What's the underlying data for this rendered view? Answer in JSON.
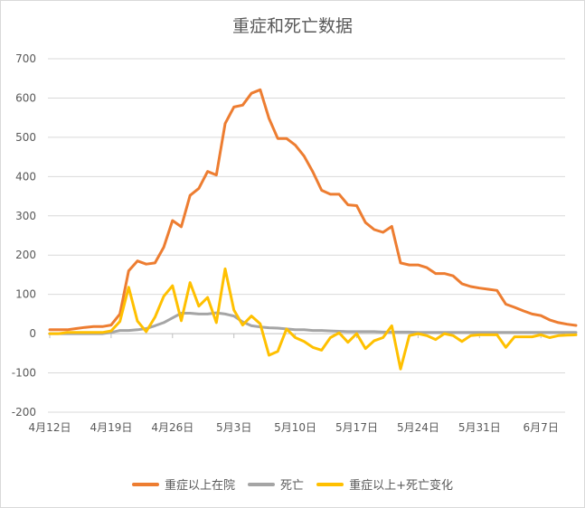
{
  "chart_data": {
    "type": "line",
    "title": "重症和死亡数据",
    "xlabel": "",
    "ylabel": "",
    "ylim": [
      -200,
      700
    ],
    "yticks": [
      -200,
      -100,
      0,
      100,
      200,
      300,
      400,
      500,
      600,
      700
    ],
    "grid": true,
    "legend_position": "bottom",
    "x_tick_labels": [
      "4月12日",
      "4月19日",
      "4月26日",
      "5月3日",
      "5月10日",
      "5月17日",
      "5月24日",
      "5月31日",
      "6月7日"
    ],
    "x_tick_index": [
      0,
      7,
      14,
      21,
      28,
      35,
      42,
      49,
      56
    ],
    "colors": {
      "severe": "#ED7D31",
      "death": "#A5A5A5",
      "change": "#FFC000",
      "grid": "#d9d9d9",
      "axis": "#bfbfbf"
    },
    "series": [
      {
        "name": "重症以上在院",
        "color": "#ED7D31",
        "values": [
          10,
          10,
          10,
          13,
          16,
          18,
          18,
          22,
          50,
          160,
          185,
          177,
          180,
          220,
          288,
          272,
          352,
          370,
          413,
          404,
          535,
          577,
          582,
          612,
          621,
          548,
          497,
          497,
          480,
          452,
          412,
          365,
          355,
          355,
          328,
          326,
          283,
          265,
          258,
          273,
          180,
          175,
          175,
          168,
          153,
          153,
          147,
          127,
          120,
          116,
          113,
          110,
          75,
          67,
          58,
          50,
          46,
          35,
          28,
          24,
          21
        ]
      },
      {
        "name": "死亡",
        "color": "#A5A5A5",
        "values": [
          0,
          0,
          0,
          0,
          0,
          0,
          0,
          3,
          8,
          8,
          10,
          13,
          20,
          28,
          40,
          52,
          52,
          50,
          50,
          53,
          50,
          45,
          30,
          20,
          17,
          15,
          14,
          12,
          10,
          10,
          8,
          8,
          7,
          6,
          5,
          5,
          5,
          5,
          4,
          4,
          4,
          4,
          3,
          3,
          3,
          3,
          3,
          3,
          3,
          3,
          3,
          3,
          3,
          3,
          3,
          3,
          3,
          3,
          3,
          3,
          3
        ]
      },
      {
        "name": "重症以上+死亡变化",
        "color": "#FFC000",
        "values": [
          0,
          0,
          3,
          3,
          3,
          3,
          3,
          7,
          31,
          118,
          32,
          5,
          42,
          95,
          122,
          33,
          130,
          70,
          92,
          28,
          165,
          60,
          22,
          45,
          25,
          -55,
          -45,
          12,
          -10,
          -20,
          -35,
          -42,
          -10,
          2,
          -22,
          0,
          -38,
          -18,
          -10,
          20,
          -90,
          -5,
          0,
          -5,
          -15,
          0,
          -5,
          -20,
          -5,
          -3,
          -3,
          -3,
          -35,
          -8,
          -8,
          -8,
          -3,
          -10,
          -5,
          -4,
          -3
        ]
      }
    ]
  }
}
